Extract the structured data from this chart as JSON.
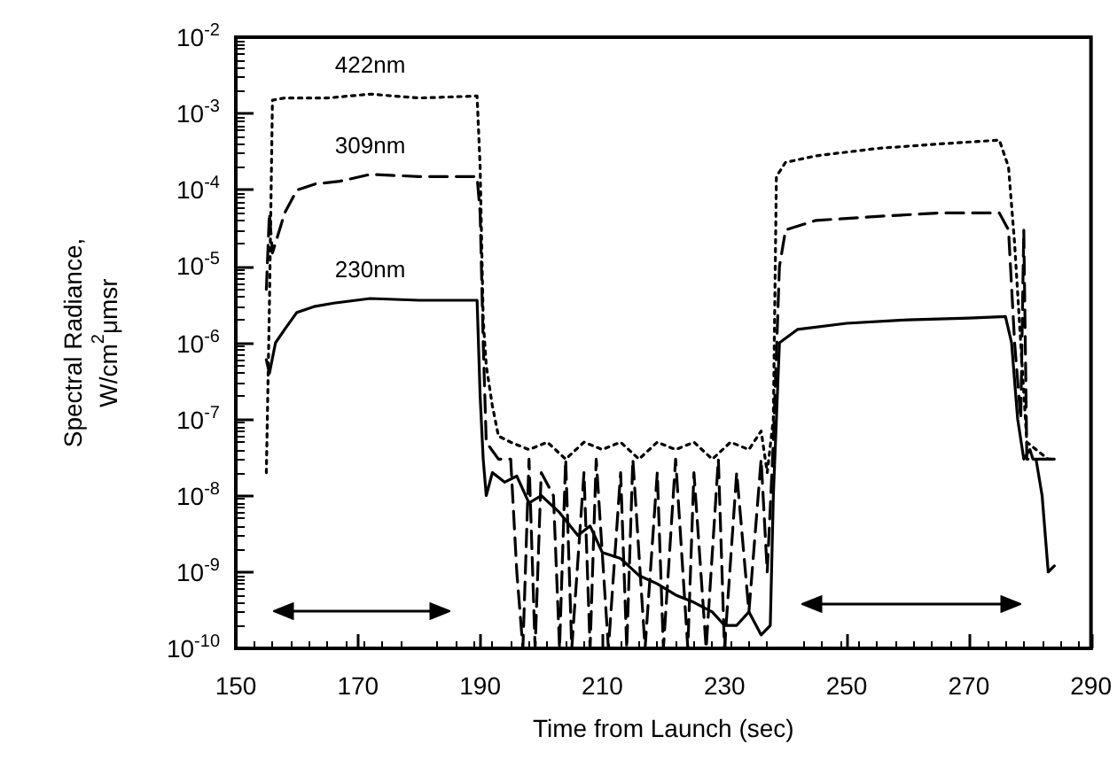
{
  "chart_data": {
    "type": "line",
    "xlabel": "Time from Launch (sec)",
    "ylabel": "Spectral Radiance,\nW/cm$^{2}$μmsr",
    "log": "y",
    "grid": false,
    "legend": false,
    "marker": "none",
    "xlim": [
      150,
      290
    ],
    "xticks": [
      150,
      170,
      190,
      210,
      230,
      250,
      270,
      290
    ],
    "ylim": [
      1e-10,
      0.01
    ],
    "yticks": [
      {
        "value": 1e-10,
        "label": "10$^{-10}$"
      },
      {
        "value": 1e-09,
        "label": "10$^{-9}$"
      },
      {
        "value": 1e-08,
        "label": "10$^{-8}$"
      },
      {
        "value": 1e-07,
        "label": "10$^{-7}$"
      },
      {
        "value": 1e-06,
        "label": "10$^{-6}$"
      },
      {
        "value": 1e-05,
        "label": "10$^{-5}$"
      },
      {
        "value": 0.0001,
        "label": "10$^{-4}$"
      },
      {
        "value": 0.001,
        "label": "10$^{-3}$"
      },
      {
        "value": 0.01,
        "label": "10$^{-2}$"
      }
    ],
    "series": [
      {
        "name": "422nm",
        "color": "#000000",
        "line_style": "dotted",
        "x": [
          155,
          155.5,
          156,
          158,
          165,
          172,
          180,
          189.5,
          190,
          190.5,
          191,
          192,
          193,
          195,
          198,
          201,
          204,
          207,
          210,
          213,
          216,
          219,
          222,
          225,
          228,
          231,
          234,
          236,
          237,
          238,
          238.5,
          240,
          245,
          255,
          265,
          275,
          276.5,
          277.5,
          278.5,
          279.5,
          281,
          283,
          284
        ],
        "values": [
          2e-08,
          3e-06,
          0.0015,
          0.0016,
          0.0016,
          0.0018,
          0.0016,
          0.0017,
          0.0002,
          2e-06,
          5e-07,
          1.5e-07,
          6e-08,
          5e-08,
          4e-08,
          5e-08,
          3e-08,
          5e-08,
          4e-08,
          5e-08,
          3e-08,
          5e-08,
          4e-08,
          5e-08,
          3e-08,
          5e-08,
          4e-08,
          7e-08,
          2e-08,
          1e-07,
          0.00015,
          0.00023,
          0.00028,
          0.00035,
          0.0004,
          0.00045,
          0.0002,
          2e-05,
          1e-06,
          5e-08,
          4e-08,
          3e-08,
          3e-08
        ]
      },
      {
        "name": "309nm",
        "color": "#000000",
        "line_style": "dashed",
        "x": [
          155,
          155.5,
          156,
          158,
          160,
          163,
          167,
          172,
          180,
          185,
          189.5,
          190,
          190.5,
          191,
          193,
          195,
          196,
          197,
          198,
          199,
          200,
          202,
          203,
          204,
          205,
          207,
          208,
          209,
          211,
          213,
          214,
          215,
          217,
          219,
          220,
          222,
          224,
          225,
          227,
          229,
          230,
          232,
          234,
          236,
          237,
          238,
          239,
          240,
          245,
          255,
          265,
          275,
          276.5,
          277.5,
          278.5,
          279,
          279.5,
          280,
          282,
          284
        ],
        "values": [
          5e-06,
          5e-05,
          1.5e-05,
          5e-05,
          0.0001,
          0.00012,
          0.00013,
          0.00016,
          0.00015,
          0.00015,
          0.00015,
          5e-05,
          1e-06,
          5e-08,
          3e-08,
          3e-08,
          1e-09,
          1e-10,
          3e-08,
          1e-10,
          2e-08,
          1e-08,
          1e-10,
          3e-08,
          1e-10,
          2e-08,
          1e-10,
          3e-08,
          1e-10,
          2e-08,
          1e-10,
          3e-08,
          1e-10,
          2e-08,
          1e-10,
          3e-08,
          1e-10,
          2e-08,
          1e-10,
          3e-08,
          1e-10,
          2e-08,
          3e-10,
          3e-08,
          1e-09,
          5e-08,
          1e-05,
          3e-05,
          4e-05,
          4.5e-05,
          5e-05,
          5e-05,
          3e-05,
          1e-06,
          1e-07,
          3e-05,
          3e-08,
          3e-08,
          3e-08,
          3e-08
        ]
      },
      {
        "name": "230nm",
        "color": "#000000",
        "line_style": "solid",
        "x": [
          155,
          155.5,
          156.5,
          158,
          160,
          163,
          166,
          172,
          180,
          189.5,
          190,
          190.5,
          191,
          192,
          194,
          196,
          198,
          200,
          203,
          206,
          208,
          210,
          213,
          216,
          219,
          222,
          225,
          228,
          230,
          232,
          234,
          236,
          237.5,
          238,
          239,
          242,
          250,
          260,
          270,
          276,
          277,
          278,
          279,
          280,
          280.5,
          281,
          282,
          283,
          284
        ],
        "values": [
          6e-07,
          4e-07,
          1e-06,
          1.5e-06,
          2.5e-06,
          3e-06,
          3.3e-06,
          3.8e-06,
          3.6e-06,
          3.6e-06,
          2e-07,
          3e-08,
          1e-08,
          2e-08,
          1.5e-08,
          1.8e-08,
          8e-09,
          1e-08,
          6e-09,
          3e-09,
          4e-09,
          1.8e-09,
          1.5e-09,
          9e-10,
          7e-10,
          5e-10,
          4e-10,
          3e-10,
          2e-10,
          2e-10,
          3e-10,
          1.5e-10,
          2e-10,
          1e-08,
          1e-06,
          1.5e-06,
          1.8e-06,
          2e-06,
          2.1e-06,
          2.2e-06,
          1e-06,
          1e-07,
          3e-08,
          4e-08,
          3e-08,
          3e-08,
          1e-08,
          1e-09,
          1.2e-09
        ]
      }
    ]
  }
}
